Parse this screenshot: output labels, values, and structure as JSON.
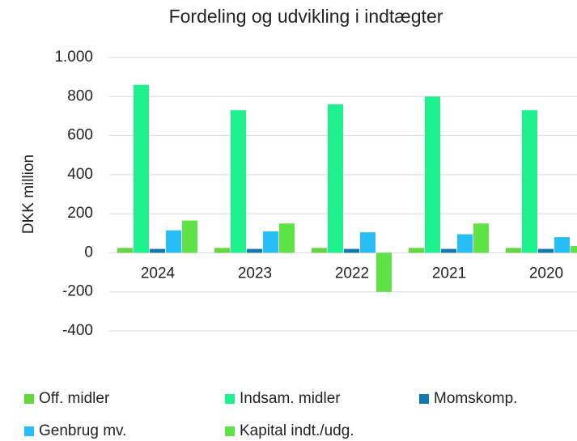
{
  "chart_data": {
    "type": "bar",
    "title": "Fordeling og udvikling i indtægter",
    "y_label": "DKK million",
    "categories": [
      "2024",
      "2023",
      "2022",
      "2021",
      "2020"
    ],
    "series": [
      {
        "name": "Off. midler",
        "color": "#62d83e",
        "values": [
          25,
          25,
          25,
          25,
          25
        ]
      },
      {
        "name": "Indsam. midler",
        "color": "#1ef28e",
        "values": [
          860,
          730,
          760,
          800,
          730
        ]
      },
      {
        "name": "Momskomp.",
        "color": "#1479b0",
        "values": [
          20,
          20,
          20,
          20,
          20
        ]
      },
      {
        "name": "Genbrug mv.",
        "color": "#27bdf7",
        "values": [
          115,
          110,
          105,
          95,
          80
        ]
      },
      {
        "name": "Kapital indt./udg.",
        "color": "#5ee345",
        "values": [
          165,
          150,
          -200,
          150,
          35
        ]
      }
    ],
    "ylim": [
      -400,
      1000
    ],
    "yticks": [
      -400,
      -200,
      0,
      200,
      400,
      600,
      800,
      {
        "value": 1000,
        "label": "1.000"
      }
    ],
    "grid": true,
    "legend": "bottom"
  }
}
